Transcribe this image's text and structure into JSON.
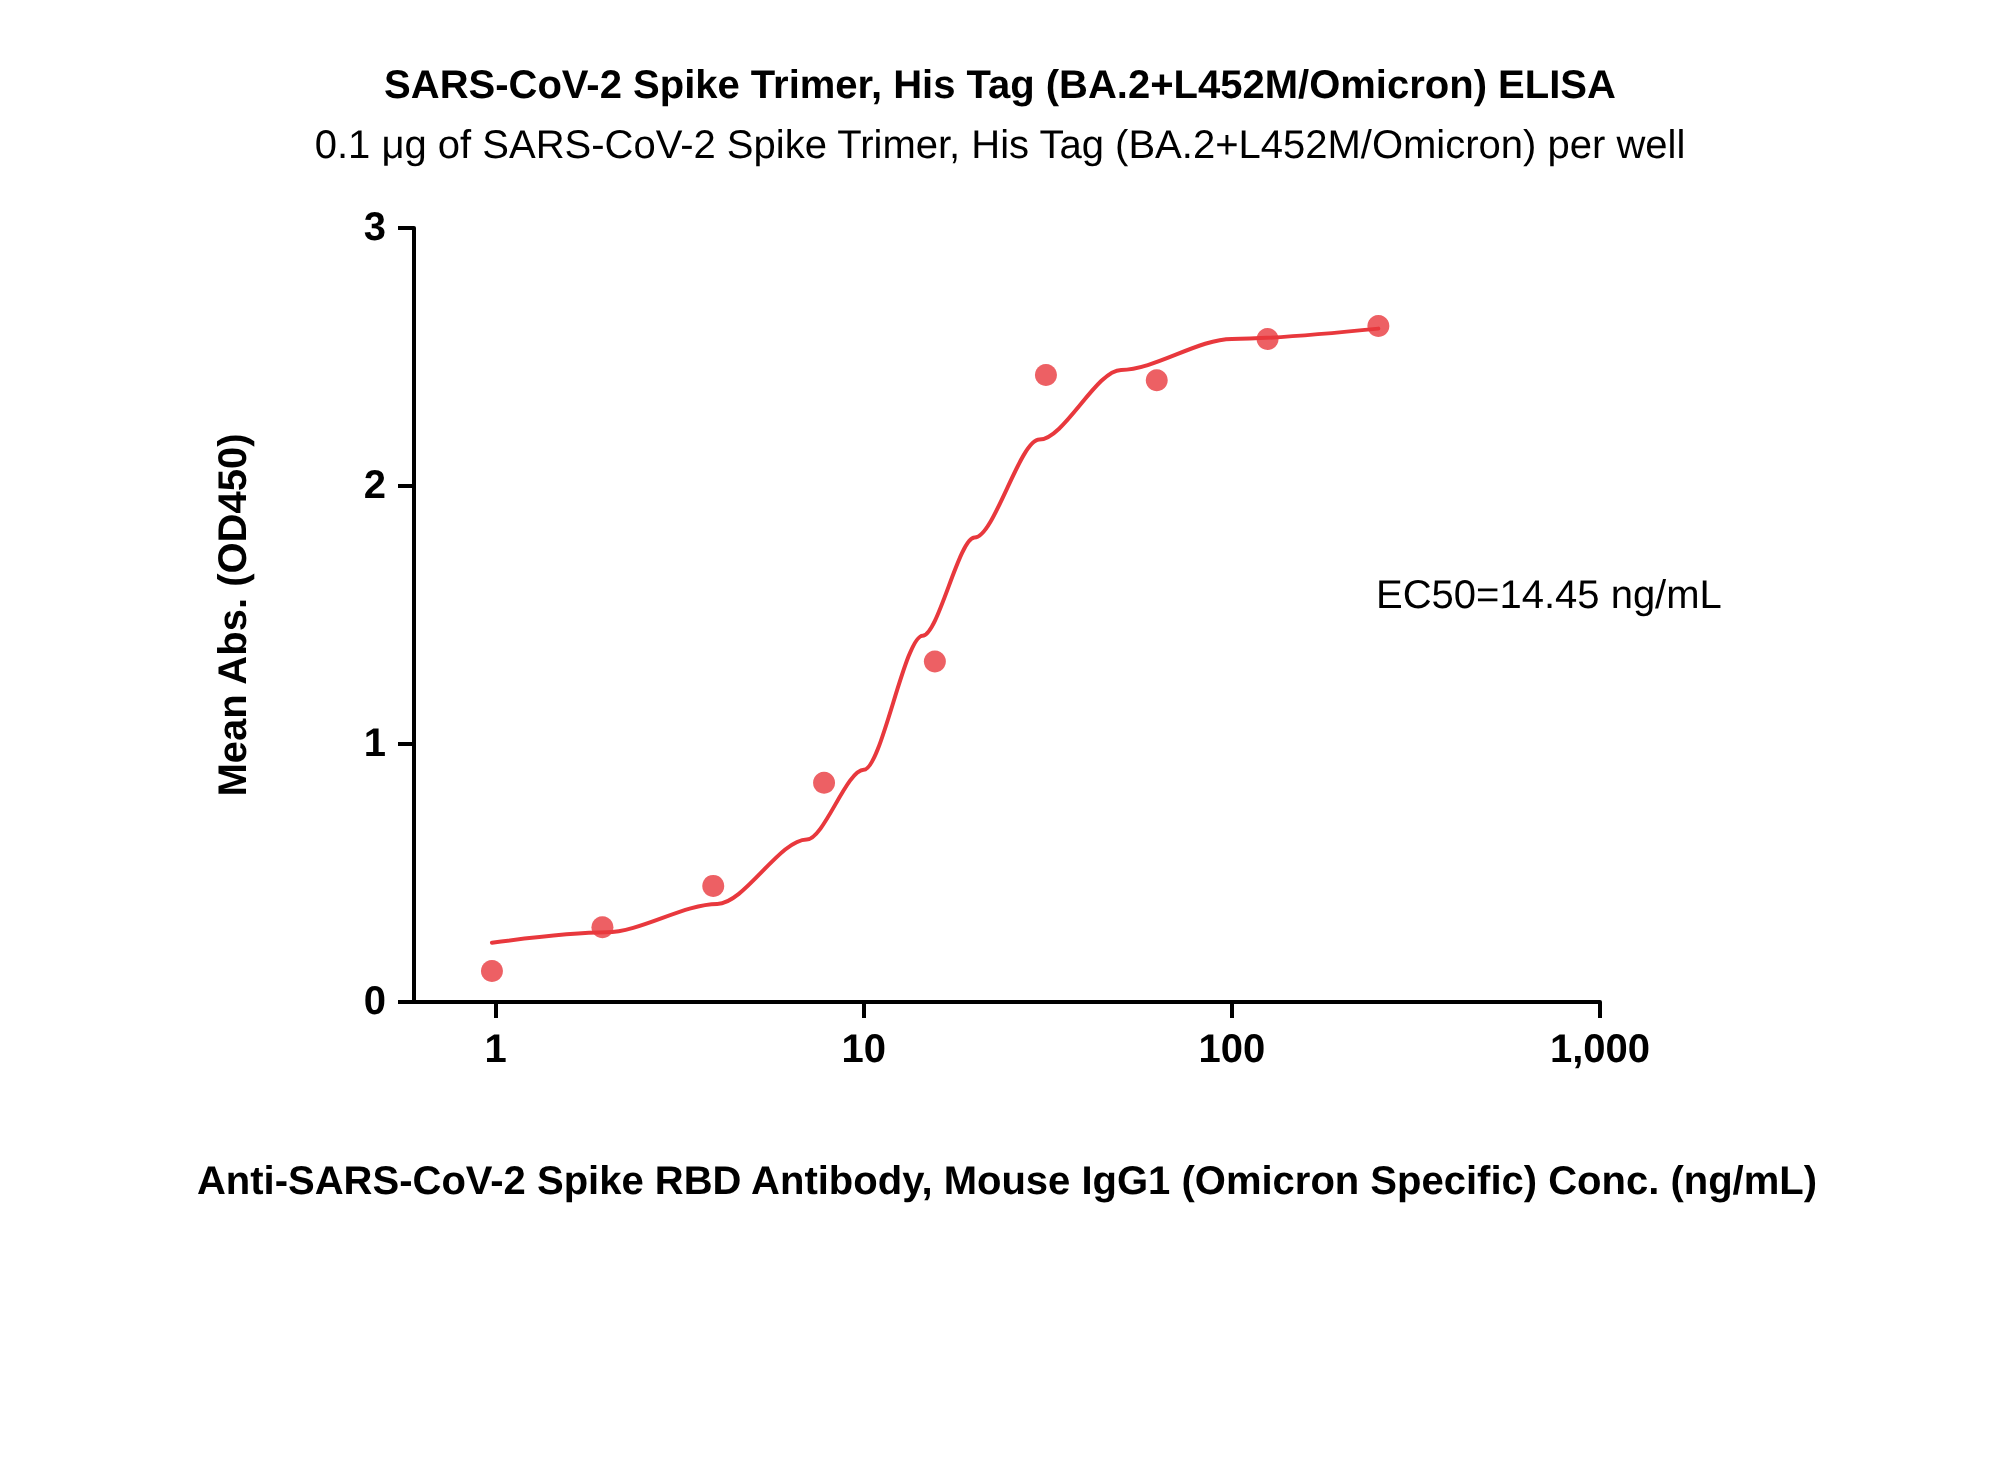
{
  "chart_data": {
    "type": "scatter",
    "title": "SARS-CoV-2 Spike Trimer, His Tag (BA.2+L452M/Omicron) ELISA",
    "subtitle": "0.1 μg of SARS-CoV-2 Spike Trimer, His Tag (BA.2+L452M/Omicron) per well",
    "xlabel": "Anti-SARS-CoV-2 Spike RBD Antibody, Mouse IgG1 (Omicron Specific) Conc. (ng/mL)",
    "ylabel": "Mean Abs. (OD450)",
    "annotations": [
      "EC50=14.45 ng/mL"
    ],
    "log": "x",
    "xlim": [
      0.6,
      1000
    ],
    "xticks": [
      1,
      10,
      100,
      {
        "value": 1000,
        "label": "1,000"
      }
    ],
    "ylim": [
      0,
      3
    ],
    "yticks": [
      0,
      1,
      2,
      3
    ],
    "grid": false,
    "marker": "circle",
    "series": [
      {
        "color": "#e8383d",
        "x": [
          0.977,
          1.95,
          3.9,
          7.8,
          15.6,
          31.25,
          62.5,
          125,
          250
        ],
        "values": [
          0.12,
          0.29,
          0.45,
          0.85,
          1.32,
          2.43,
          2.41,
          2.57,
          2.62
        ]
      },
      {
        "type": "line",
        "color": "#e8383d",
        "marker": "none",
        "line_style": "solid",
        "x": [
          0.977,
          2,
          4,
          7,
          10,
          14.45,
          20,
          30,
          50,
          100,
          250
        ],
        "values": [
          0.23,
          0.27,
          0.38,
          0.63,
          0.9,
          1.42,
          1.8,
          2.18,
          2.45,
          2.57,
          2.61
        ]
      }
    ]
  }
}
